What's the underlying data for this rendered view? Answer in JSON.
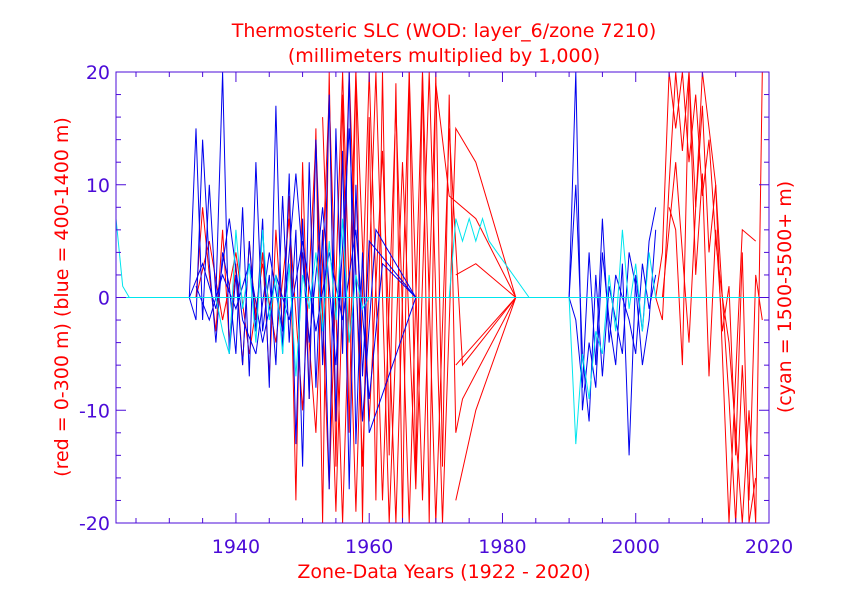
{
  "chart_data": {
    "type": "line",
    "title": "Thermosteric SLC (WOD: layer_6/zone 7210)",
    "subtitle": "(millimeters multiplied by 1,000)",
    "xlabel": "Zone-Data Years (1922 - 2020)",
    "ylabel_left": "(red = 0-300 m)  (blue = 400-1400 m)",
    "ylabel_right": "(cyan = 1500-5500+ m)",
    "xlim": [
      1922,
      2020
    ],
    "ylim": [
      -20,
      20
    ],
    "x_ticks": [
      1940,
      1960,
      1980,
      2000,
      2020
    ],
    "y_ticks": [
      -20,
      -10,
      0,
      10,
      20
    ],
    "grid": false,
    "colors": {
      "red": "#ff0000",
      "blue": "#0000ee",
      "cyan": "#00e5ee",
      "axis": "#4b0bd8"
    },
    "series": [
      {
        "color": "red",
        "x": [
          1934,
          1935,
          1936,
          1937,
          1938,
          1939,
          1940,
          1941,
          1942,
          1943,
          1944,
          1945,
          1946,
          1947,
          1948,
          1949,
          1950,
          1951,
          1952,
          1953,
          1954,
          1955,
          1956,
          1957,
          1958,
          1959,
          1960,
          1961,
          1962,
          1963,
          1964,
          1965,
          1966,
          1967,
          1968,
          1969,
          1970,
          1971,
          1972,
          1973,
          1974,
          1982
        ],
        "y": [
          0,
          8,
          2,
          -3,
          6,
          -4,
          3,
          -6,
          5,
          -2,
          4,
          -7,
          6,
          -3,
          9,
          -18,
          12,
          -9,
          15,
          -20,
          20,
          -15,
          18,
          -12,
          20,
          -20,
          16,
          -18,
          20,
          -14,
          19,
          -20,
          20,
          -16,
          20,
          -20,
          20,
          -15,
          18,
          -12,
          -9,
          0
        ]
      },
      {
        "color": "red",
        "x": [
          1934,
          1936,
          1938,
          1940,
          1942,
          1944,
          1946,
          1948,
          1950,
          1952,
          1954,
          1956,
          1958,
          1960,
          1962,
          1964,
          1966,
          1968,
          1970,
          1972,
          1974,
          1982
        ],
        "y": [
          0,
          5,
          -2,
          4,
          -5,
          3,
          -4,
          7,
          -10,
          14,
          -17,
          20,
          -19,
          20,
          -18,
          17,
          -20,
          20,
          -20,
          15,
          -6,
          0
        ]
      },
      {
        "color": "red",
        "x": [
          1950,
          1952,
          1954,
          1956,
          1958,
          1960,
          1962,
          1964,
          1966,
          1968,
          1970,
          1972,
          1976,
          1982
        ],
        "y": [
          4,
          -12,
          18,
          -20,
          20,
          -11,
          13,
          -20,
          20,
          -18,
          19,
          9,
          7,
          0
        ]
      },
      {
        "color": "red",
        "x": [
          1953,
          1955,
          1957,
          1959,
          1961,
          1963,
          1965,
          1967,
          1969,
          1971,
          1973,
          1976,
          1982
        ],
        "y": [
          16,
          -19,
          20,
          -15,
          20,
          -20,
          12,
          -17,
          20,
          -20,
          15,
          12,
          0
        ]
      },
      {
        "color": "red",
        "x": [
          1973,
          1976,
          1982
        ],
        "y": [
          -18,
          -10,
          0
        ]
      },
      {
        "color": "red",
        "x": [
          1973,
          1976,
          1982
        ],
        "y": [
          2,
          3,
          0
        ]
      },
      {
        "color": "red",
        "x": [
          1973,
          1976,
          1982
        ],
        "y": [
          -6,
          -4,
          0
        ]
      },
      {
        "color": "red",
        "x": [
          2003,
          2004,
          2005,
          2006,
          2007,
          2008,
          2009,
          2010,
          2011,
          2012,
          2013,
          2014,
          2015,
          2016,
          2017,
          2018,
          2019
        ],
        "y": [
          0,
          4,
          20,
          15,
          20,
          12,
          18,
          9,
          14,
          5,
          0,
          -4,
          -12,
          -20,
          -10,
          -20,
          20
        ]
      },
      {
        "color": "red",
        "x": [
          2003,
          2004,
          2005,
          2006,
          2007,
          2008,
          2009,
          2010,
          2011,
          2012,
          2013,
          2014,
          2015,
          2016,
          2017,
          2018,
          2019
        ],
        "y": [
          0,
          -2,
          10,
          20,
          13,
          20,
          8,
          17,
          4,
          10,
          0,
          -9,
          -20,
          -6,
          -18,
          2,
          -2
        ]
      },
      {
        "color": "red",
        "x": [
          2005,
          2006,
          2007,
          2008,
          2009,
          2010,
          2011,
          2012,
          2013,
          2014,
          2015,
          2016,
          2017,
          2018
        ],
        "y": [
          8,
          6,
          -6,
          20,
          2,
          11,
          -7,
          6,
          -3,
          1,
          -14,
          4,
          -20,
          -16
        ]
      },
      {
        "color": "red",
        "x": [
          2004,
          2006,
          2008,
          2010,
          2012,
          2014,
          2016,
          2018
        ],
        "y": [
          0,
          12,
          -4,
          20,
          10,
          -20,
          6,
          5
        ]
      },
      {
        "color": "blue",
        "x": [
          1933,
          1934,
          1935,
          1936,
          1937,
          1938,
          1939,
          1940,
          1941,
          1942,
          1943,
          1944,
          1945,
          1946,
          1947,
          1948,
          1949,
          1950,
          1951,
          1952,
          1953,
          1954,
          1955,
          1956,
          1957,
          1958,
          1959,
          1960,
          1967
        ],
        "y": [
          0,
          15,
          -2,
          10,
          0,
          20,
          -5,
          2,
          -6,
          5,
          -3,
          7,
          -8,
          17,
          -5,
          11,
          -13,
          7,
          -9,
          14,
          -6,
          18,
          -11,
          13,
          -17,
          10,
          -7,
          5,
          0
        ]
      },
      {
        "color": "blue",
        "x": [
          1933,
          1934,
          1935,
          1936,
          1937,
          1938,
          1939,
          1940,
          1941,
          1942,
          1943,
          1944,
          1945,
          1946,
          1947,
          1948,
          1949,
          1950,
          1951,
          1952,
          1953,
          1954,
          1955,
          1956,
          1957,
          1958,
          1959,
          1960,
          1967
        ],
        "y": [
          0,
          -2,
          14,
          3,
          -4,
          4,
          1,
          -5,
          8,
          -7,
          12,
          -3,
          2,
          -6,
          9,
          -4,
          6,
          -15,
          12,
          -8,
          6,
          -17,
          15,
          -5,
          20,
          -13,
          4,
          -12,
          0
        ]
      },
      {
        "color": "blue",
        "x": [
          1933,
          1935,
          1937,
          1939,
          1941,
          1943,
          1945,
          1947,
          1949,
          1951,
          1953,
          1955,
          1957,
          1959,
          1961,
          1967
        ],
        "y": [
          0,
          3,
          -1,
          7,
          -2,
          -5,
          4,
          -3,
          11,
          -4,
          8,
          -6,
          15,
          -11,
          6,
          0
        ]
      },
      {
        "color": "blue",
        "x": [
          1934,
          1936,
          1938,
          1940,
          1942,
          1944,
          1946,
          1948,
          1950,
          1952,
          1954,
          1956,
          1958,
          1960,
          1962,
          1967
        ],
        "y": [
          1,
          -2,
          2,
          -1,
          3,
          -4,
          2,
          -2,
          5,
          -3,
          4,
          -2,
          6,
          -9,
          3,
          0
        ]
      },
      {
        "color": "blue",
        "x": [
          1990,
          1991,
          1992,
          1993,
          1994,
          1995,
          1996,
          1997,
          1998,
          1999,
          2000,
          2001,
          2002,
          2003
        ],
        "y": [
          0,
          20,
          -10,
          -4,
          -8,
          4,
          -2,
          -6,
          3,
          -14,
          2,
          -3,
          5,
          8
        ]
      },
      {
        "color": "blue",
        "x": [
          1990,
          1991,
          1992,
          1993,
          1994,
          1995,
          1996,
          1997,
          1998,
          1999,
          2000,
          2001,
          2002,
          2003
        ],
        "y": [
          0,
          10,
          -5,
          -11,
          2,
          -7,
          1,
          -2,
          -5,
          4,
          1,
          -6,
          -2,
          6
        ]
      },
      {
        "color": "blue",
        "x": [
          1990,
          1991,
          1992,
          1993,
          1994,
          1995,
          1996,
          1997,
          1998,
          1999,
          2000,
          2001,
          2002,
          2003
        ],
        "y": [
          0,
          -2,
          -8,
          4,
          -6,
          7,
          -4,
          2,
          0,
          -2,
          -5,
          3,
          -1,
          2
        ]
      },
      {
        "color": "cyan",
        "x": [
          1922,
          1923,
          1924
        ],
        "y": [
          7,
          1,
          0
        ]
      },
      {
        "color": "cyan",
        "x": [
          1937,
          1938,
          1939,
          1940,
          1941,
          1942,
          1943,
          1944,
          1945,
          1946,
          1947,
          1948,
          1949,
          1950,
          1951,
          1952,
          1953,
          1954,
          1955,
          1956,
          1957,
          1958,
          1959,
          1960
        ],
        "y": [
          0,
          -3,
          -5,
          6,
          -1,
          3,
          -4,
          6,
          -2,
          2,
          -5,
          3,
          -7,
          2,
          -1,
          4,
          -3,
          5,
          -2,
          7,
          -4,
          2,
          -1,
          0
        ]
      },
      {
        "color": "cyan",
        "x": [
          1972,
          1973,
          1974,
          1975,
          1976,
          1977,
          1978,
          1984
        ],
        "y": [
          0,
          7,
          5,
          7,
          5,
          7,
          5,
          0
        ]
      },
      {
        "color": "cyan",
        "x": [
          1990,
          1991,
          1992,
          1993,
          1994,
          1995,
          1996,
          1997,
          1998,
          1999,
          2000,
          2001,
          2002,
          2003
        ],
        "y": [
          0,
          -13,
          -5,
          -9,
          -3,
          -5,
          2,
          -3,
          6,
          -1,
          3,
          -3,
          4,
          0
        ]
      },
      {
        "color": "cyan",
        "x": [
          1922,
          2020
        ],
        "y": [
          0,
          0
        ]
      }
    ]
  }
}
